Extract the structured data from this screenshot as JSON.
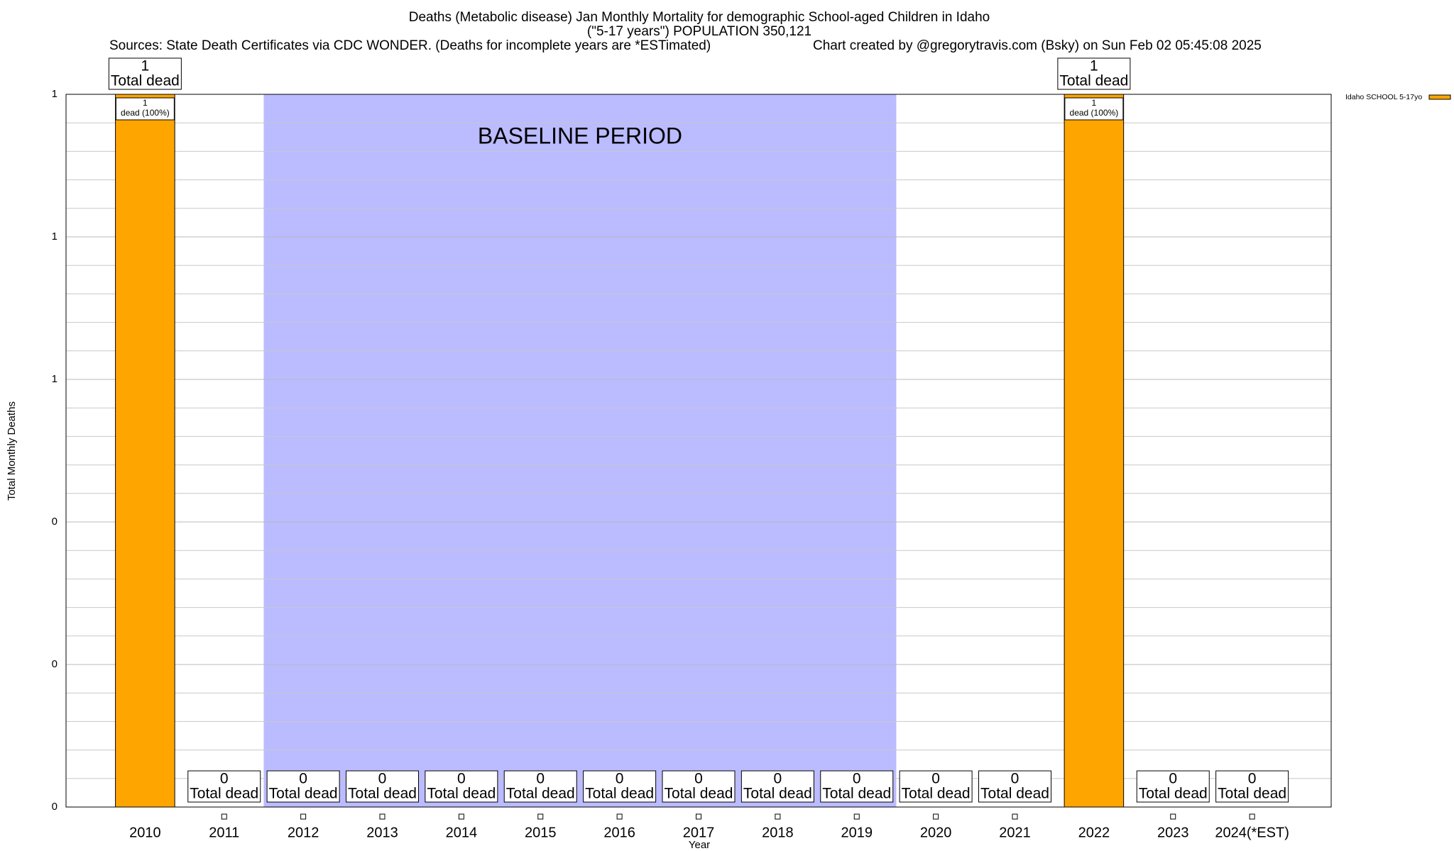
{
  "chart_data": {
    "type": "bar",
    "title": "Deaths (Metabolic disease) Jan Monthly Mortality for demographic School-aged Children in Idaho",
    "subtitle": "(\"5-17 years\") POPULATION 350,121",
    "sources": "Sources: State Death Certificates via CDC WONDER. (Deaths for incomplete years are *ESTimated)",
    "credit": "Chart created by @gregorytravis.com (Bsky) on Sun Feb 02 05:45:08 2025",
    "x_label": "Year",
    "y_label": "Total Monthly Deaths",
    "categories": [
      "2010",
      "2011",
      "2012",
      "2013",
      "2014",
      "2015",
      "2016",
      "2017",
      "2018",
      "2019",
      "2020",
      "2021",
      "2022",
      "2023",
      "2024(*EST)"
    ],
    "series": [
      {
        "name": "Idaho SCHOOL 5-17yo",
        "color": "#ffa500",
        "values": [
          1,
          0,
          0,
          0,
          0,
          0,
          0,
          0,
          0,
          0,
          0,
          0,
          1,
          0,
          0
        ]
      }
    ],
    "total_text": "Total dead",
    "inner_labels": [
      "dead (100%)",
      null,
      null,
      null,
      null,
      null,
      null,
      null,
      null,
      null,
      null,
      null,
      "dead (100%)",
      null,
      null
    ],
    "shaded_region": {
      "label": "BASELINE PERIOD",
      "from": "2012",
      "to": "2019",
      "color": "#bbbbff"
    },
    "ylim": [
      0,
      1
    ],
    "yticks": [
      0,
      {
        "value": 0.2,
        "label": "0"
      },
      {
        "value": 0.4,
        "label": "0"
      },
      {
        "value": 0.6,
        "label": "1"
      },
      {
        "value": 0.8,
        "label": "1"
      },
      1
    ],
    "minor_yticks": [
      0.04,
      0.08,
      0.12,
      0.16,
      0.24,
      0.28,
      0.32,
      0.36,
      0.44,
      0.48,
      0.52,
      0.56,
      0.64,
      0.68,
      0.72,
      0.76,
      0.84,
      0.88,
      0.92,
      0.96
    ],
    "grid": true,
    "legend": "top-right"
  }
}
